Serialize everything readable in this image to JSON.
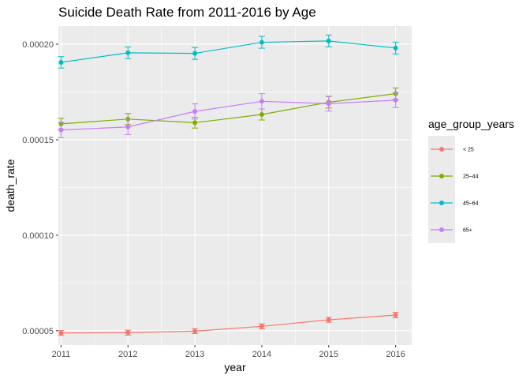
{
  "chart_data": {
    "type": "line",
    "title": "Suicide Death Rate from 2011-2016 by Age",
    "xlabel": "year",
    "ylabel": "death_rate",
    "x": [
      2011,
      2012,
      2013,
      2014,
      2015,
      2016
    ],
    "xlim": [
      2010.96,
      2016.24
    ],
    "ylim": [
      4.25e-05,
      0.0002095
    ],
    "x_ticks": [
      "2011",
      "2012",
      "2013",
      "2014",
      "2015",
      "2016"
    ],
    "y_ticks": [
      "0.00005",
      "0.00010",
      "0.00015",
      "0.00020"
    ],
    "y_tick_values": [
      5e-05,
      0.0001,
      0.00015,
      0.0002
    ],
    "grid": true,
    "legend": {
      "title": "age_group_years",
      "placement": "right"
    },
    "series": [
      {
        "name": "< 25",
        "color": "#F8766D",
        "values": [
          4.88e-05,
          4.9e-05,
          4.98e-05,
          5.23e-05,
          5.57e-05,
          5.82e-05
        ],
        "error": [
          1.3e-06,
          1.3e-06,
          1.3e-06,
          1.3e-06,
          1.3e-06,
          1.4e-06
        ]
      },
      {
        "name": "25–44",
        "color": "#7CAE00",
        "values": [
          0.0001583,
          0.0001608,
          0.0001589,
          0.0001632,
          0.0001696,
          0.0001741
        ],
        "error": [
          2.9e-06,
          2.9e-06,
          2.8e-06,
          2.9e-06,
          3e-06,
          3e-06
        ]
      },
      {
        "name": "45–64",
        "color": "#00BFC4",
        "values": [
          0.0001905,
          0.0001955,
          0.0001952,
          0.000201,
          0.0002017,
          0.000198
        ],
        "error": [
          3e-06,
          3.1e-06,
          3.1e-06,
          3.1e-06,
          3.1e-06,
          3.1e-06
        ]
      },
      {
        "name": "65+",
        "color": "#C77CFF",
        "values": [
          0.0001551,
          0.0001567,
          0.0001648,
          0.0001701,
          0.0001689,
          0.0001707
        ],
        "error": [
          4e-06,
          4e-06,
          4e-06,
          4e-06,
          3.9e-06,
          3.9e-06
        ]
      }
    ]
  }
}
